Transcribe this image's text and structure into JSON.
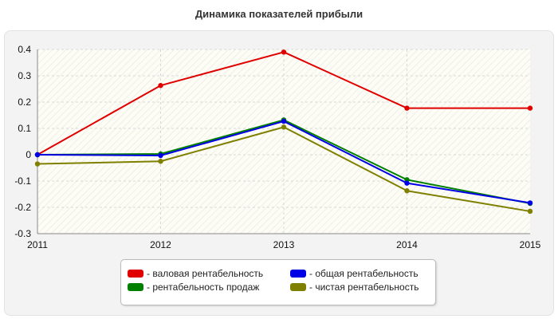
{
  "title": "Динамика показателей прибыли",
  "chart_data": {
    "type": "line",
    "title": "Динамика показателей прибыли",
    "x": [
      "2011",
      "2012",
      "2013",
      "2014",
      "2015"
    ],
    "yticks": [
      "0.4",
      "0.3",
      "0.2",
      "0.1",
      "0",
      "-0.1",
      "-0.2",
      "-0.3"
    ],
    "ylim": [
      -0.3,
      0.4
    ],
    "grid": true,
    "legend_position": "bottom",
    "series": [
      {
        "name": "- валовая рентабельность",
        "color": "#e00000",
        "values": [
          0.0,
          0.263,
          0.39,
          0.177,
          0.177
        ]
      },
      {
        "name": "- рентабельность продаж",
        "color": "#008000",
        "values": [
          0.0,
          0.003,
          0.132,
          -0.095,
          -0.185
        ]
      },
      {
        "name": "- общая рентабельность",
        "color": "#0000e6",
        "values": [
          0.0,
          -0.003,
          0.127,
          -0.108,
          -0.183
        ]
      },
      {
        "name": "- чистая рентабельность",
        "color": "#808000",
        "values": [
          -0.035,
          -0.025,
          0.105,
          -0.137,
          -0.215
        ]
      }
    ]
  }
}
